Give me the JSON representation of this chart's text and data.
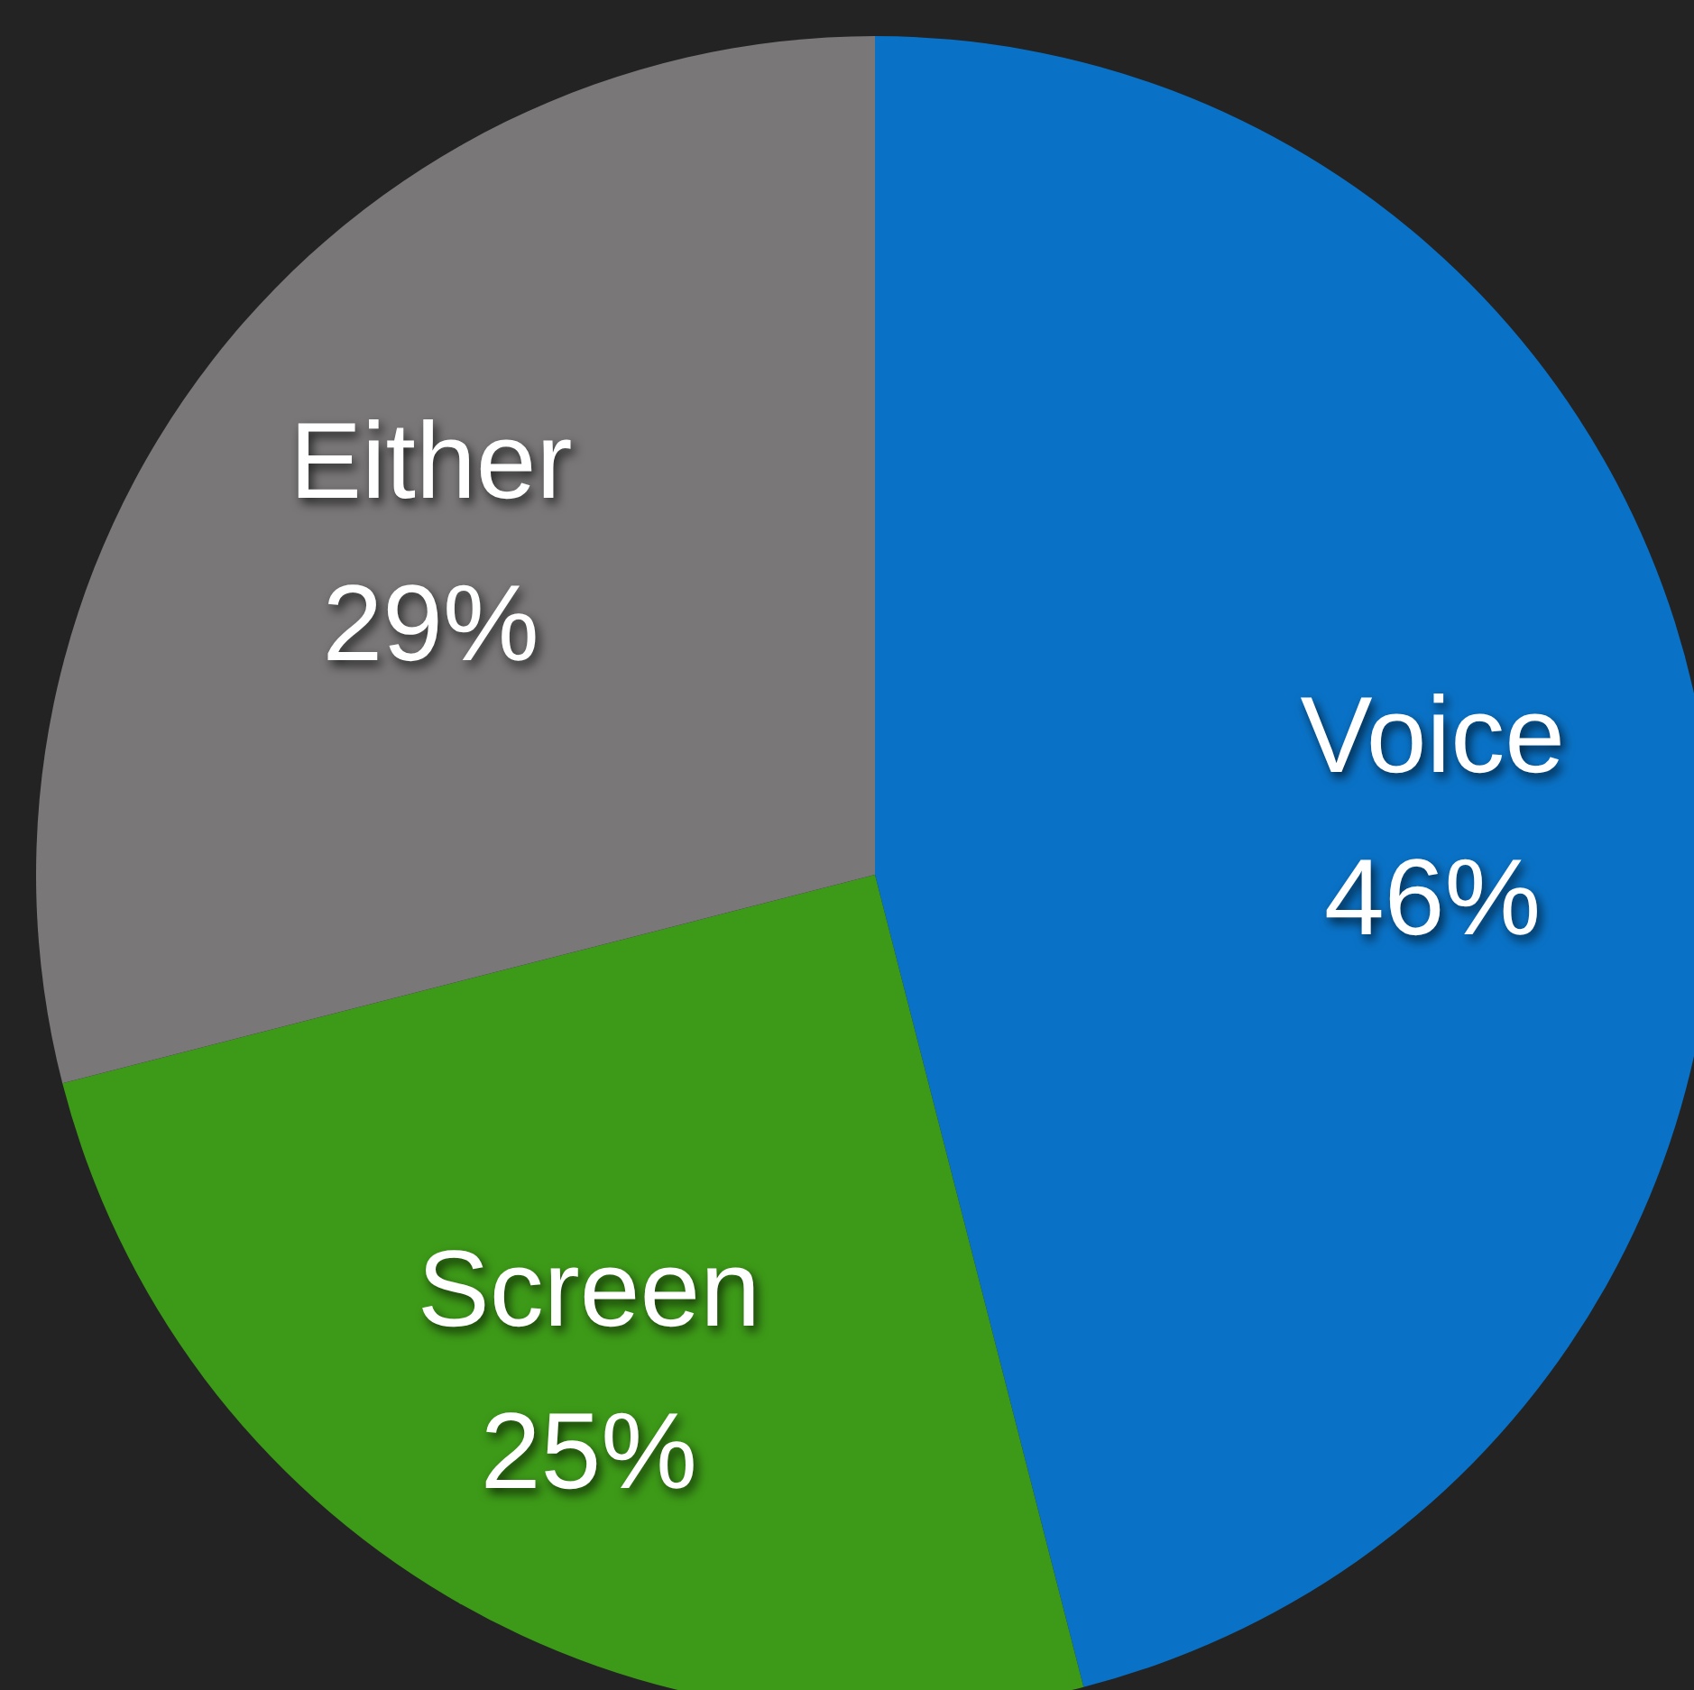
{
  "chart_data": {
    "type": "pie",
    "categories": [
      "Voice",
      "Screen",
      "Either"
    ],
    "values": [
      46,
      25,
      29
    ],
    "value_labels": [
      "46%",
      "25%",
      "29%"
    ],
    "colors": [
      "#0a72c6",
      "#3d9a18",
      "#797777"
    ]
  }
}
